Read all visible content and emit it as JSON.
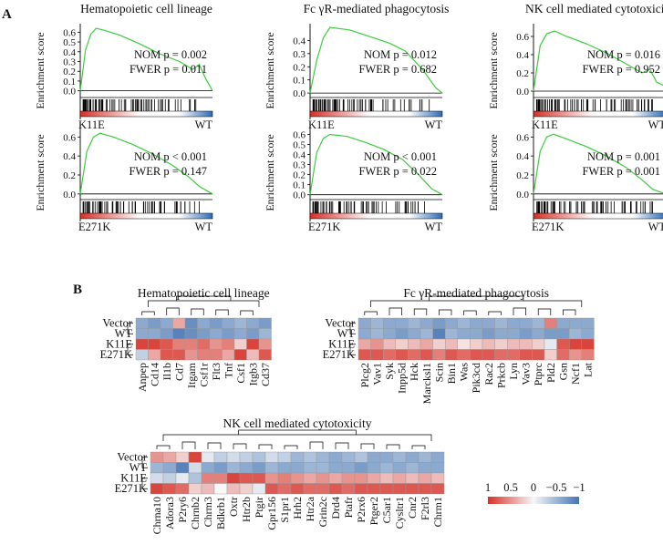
{
  "figure": {
    "panel_a_label": "A",
    "panel_b_label": "B",
    "enrichment_ylabel": "Enrichment score",
    "colorbar_ticks": [
      "1",
      "0.5",
      "0",
      "−0.5",
      "−1"
    ],
    "accent_red": "#c0282d"
  },
  "gsea": [
    {
      "title": "Hematopoietic cell lineage",
      "left": "K11E",
      "right": "WT",
      "nom": "NOM p = 0.002",
      "fwer": "FWER p = 0.011",
      "fwer_sig": true,
      "yticks": [
        "0.6",
        "0.5",
        "0.4",
        "0.3",
        "0.2",
        "0.1",
        "0.0"
      ],
      "ymax": 0.65,
      "ymin": -0.05,
      "curve": [
        [
          0,
          0
        ],
        [
          0.04,
          0.42
        ],
        [
          0.08,
          0.58
        ],
        [
          0.12,
          0.64
        ],
        [
          0.18,
          0.62
        ],
        [
          0.3,
          0.57
        ],
        [
          0.45,
          0.48
        ],
        [
          0.6,
          0.38
        ],
        [
          0.75,
          0.3
        ],
        [
          0.85,
          0.22
        ],
        [
          0.9,
          0.27
        ],
        [
          0.95,
          0.12
        ],
        [
          1,
          0
        ]
      ],
      "bar": "red-blue"
    },
    {
      "title": "Fc γR-mediated phagocytosis",
      "left": "K11E",
      "right": "WT",
      "nom": "NOM p = 0.012",
      "fwer": "FWER p = 0.682",
      "fwer_sig": false,
      "yticks": [
        "0.4",
        "0.3",
        "0.2",
        "0.1",
        "0.0"
      ],
      "ymax": 0.5,
      "ymin": -0.02,
      "curve": [
        [
          0,
          0
        ],
        [
          0.05,
          0.25
        ],
        [
          0.1,
          0.42
        ],
        [
          0.15,
          0.5
        ],
        [
          0.3,
          0.48
        ],
        [
          0.45,
          0.43
        ],
        [
          0.6,
          0.38
        ],
        [
          0.72,
          0.32
        ],
        [
          0.85,
          0.18
        ],
        [
          0.95,
          0.04
        ],
        [
          1,
          0
        ]
      ],
      "bar": "red-blue"
    },
    {
      "title": "NK cell mediated cytotoxicity",
      "left": "K11E",
      "right": "WT",
      "nom": "NOM p = 0.016",
      "fwer": "FWER p = 0.952",
      "fwer_sig": false,
      "yticks": [
        "0.6",
        "0.4",
        "0.2",
        "0.0"
      ],
      "ymax": 0.7,
      "ymin": -0.05,
      "curve": [
        [
          0,
          0
        ],
        [
          0.05,
          0.5
        ],
        [
          0.1,
          0.63
        ],
        [
          0.16,
          0.66
        ],
        [
          0.25,
          0.6
        ],
        [
          0.4,
          0.52
        ],
        [
          0.55,
          0.42
        ],
        [
          0.7,
          0.3
        ],
        [
          0.82,
          0.2
        ],
        [
          0.88,
          0.24
        ],
        [
          0.93,
          0.1
        ],
        [
          1,
          0.05
        ]
      ],
      "bar": "red-blue"
    },
    {
      "title": "",
      "left": "E271K",
      "right": "WT",
      "nom": "NOM p < 0.001",
      "fwer": "FWER p = 0.147",
      "fwer_sig": false,
      "yticks": [
        "0.6",
        "0.4",
        "0.2",
        "0.0"
      ],
      "ymax": 0.68,
      "ymin": -0.04,
      "curve": [
        [
          0,
          0
        ],
        [
          0.05,
          0.45
        ],
        [
          0.1,
          0.6
        ],
        [
          0.15,
          0.64
        ],
        [
          0.25,
          0.6
        ],
        [
          0.4,
          0.52
        ],
        [
          0.55,
          0.42
        ],
        [
          0.7,
          0.3
        ],
        [
          0.82,
          0.18
        ],
        [
          0.9,
          0.08
        ],
        [
          1,
          0
        ]
      ],
      "bar": "red-blue"
    },
    {
      "title": "",
      "left": "E271K",
      "right": "WT",
      "nom": "NOM p < 0.001",
      "fwer": "FWER p = 0.022",
      "fwer_sig": true,
      "yticks": [
        "0.6",
        "0.5",
        "0.4",
        "0.3",
        "0.2",
        "0.1",
        "0.0"
      ],
      "ymax": 0.65,
      "ymin": -0.03,
      "curve": [
        [
          0,
          0
        ],
        [
          0.05,
          0.42
        ],
        [
          0.1,
          0.56
        ],
        [
          0.15,
          0.6
        ],
        [
          0.28,
          0.58
        ],
        [
          0.42,
          0.52
        ],
        [
          0.56,
          0.45
        ],
        [
          0.7,
          0.35
        ],
        [
          0.82,
          0.2
        ],
        [
          0.92,
          0.06
        ],
        [
          1,
          0
        ]
      ],
      "bar": "red-blue"
    },
    {
      "title": "",
      "left": "E271K",
      "right": "WT",
      "nom": "NOM p = 0.001",
      "fwer": "FWER p = 0.001",
      "fwer_sig": true,
      "yticks": [
        "0.6",
        "0.4",
        "0.2",
        "0.0"
      ],
      "ymax": 0.68,
      "ymin": -0.04,
      "curve": [
        [
          0,
          0
        ],
        [
          0.05,
          0.45
        ],
        [
          0.1,
          0.6
        ],
        [
          0.15,
          0.63
        ],
        [
          0.25,
          0.58
        ],
        [
          0.4,
          0.5
        ],
        [
          0.55,
          0.4
        ],
        [
          0.7,
          0.28
        ],
        [
          0.82,
          0.15
        ],
        [
          0.9,
          0.05
        ],
        [
          1,
          0
        ]
      ],
      "bar": "red-blue"
    }
  ],
  "heatmaps": [
    {
      "title": "Hematopoietic cell lineage",
      "rows": [
        "Vector",
        "WT",
        "K11E",
        "E271K"
      ],
      "cols": [
        "Anpep",
        "Cd14",
        "Il1b",
        "Cd7",
        "Itgam",
        "Csf1r",
        "Flt3",
        "Tnf",
        "Csf1",
        "Itgb3",
        "Cd37"
      ],
      "values": [
        [
          0.6,
          0.7,
          0.6,
          -0.4,
          0.8,
          0.6,
          0.7,
          0.6,
          0.5,
          0.6,
          0.7
        ],
        [
          0.6,
          0.6,
          0.7,
          0.9,
          0.8,
          0.7,
          0.6,
          0.7,
          0.6,
          0.7,
          0.5
        ],
        [
          -0.9,
          -0.9,
          -0.8,
          -0.6,
          -0.6,
          -0.7,
          -0.5,
          -0.6,
          -0.2,
          -0.9,
          -0.5
        ],
        [
          0.3,
          -0.4,
          -0.8,
          -0.8,
          -0.5,
          -0.6,
          -0.6,
          -0.4,
          -0.9,
          -0.3,
          -0.8
        ]
      ]
    },
    {
      "title": "Fc γR-mediated phagocytosis",
      "rows": [
        "Vector",
        "WT",
        "K11E",
        "E271K"
      ],
      "cols": [
        "Plcg2",
        "Vav1",
        "Syk",
        "Inpp5d",
        "Hck",
        "Marcksl1",
        "Scin",
        "Bin1",
        "Was",
        "Pik3cd",
        "Rac2",
        "Prkcb",
        "Lyn",
        "Vav3",
        "Ptprc",
        "Pld2",
        "Gsn",
        "Ncf1",
        "Lat"
      ],
      "values": [
        [
          0.6,
          0.5,
          0.6,
          0.6,
          0.5,
          0.6,
          0.7,
          0.6,
          0.5,
          0.6,
          0.6,
          0.5,
          0.6,
          0.6,
          0.5,
          -0.6,
          0.6,
          0.6,
          0.6
        ],
        [
          0.6,
          0.5,
          0.6,
          0.7,
          0.6,
          0.5,
          0.9,
          0.5,
          0.6,
          0.6,
          0.7,
          0.6,
          0.6,
          0.7,
          0.6,
          0.7,
          0.7,
          0.5,
          0.6
        ],
        [
          -0.4,
          -0.5,
          -0.3,
          -0.2,
          -0.3,
          -0.4,
          -0.2,
          -0.3,
          -0.1,
          -0.2,
          -0.3,
          -0.2,
          -0.3,
          -0.3,
          -0.2,
          0.1,
          -0.8,
          -0.9,
          -0.9
        ],
        [
          -0.8,
          -0.8,
          -0.7,
          -0.8,
          -0.7,
          -0.8,
          -0.6,
          -0.8,
          -0.7,
          -0.8,
          -0.8,
          -0.7,
          -0.7,
          -0.8,
          -0.8,
          -0.2,
          -0.7,
          -0.5,
          -0.6
        ]
      ]
    },
    {
      "title": "NK cell mediated cytotoxicity",
      "rows": [
        "Vector",
        "WT",
        "K11E",
        "E271K"
      ],
      "cols": [
        "Chrna10",
        "Adora3",
        "P2ry6",
        "Chrnb2",
        "Chrm3",
        "Bdkrb1",
        "Oxtr",
        "Htr2b",
        "Ptgir",
        "Gpr156",
        "S1pr1",
        "Hrh2",
        "Htr2a",
        "Grin2c",
        "Drd4",
        "Ptafr",
        "P2rx6",
        "Ptger2",
        "C5ar1",
        "Cysltr1",
        "Cnr2",
        "F2rl3",
        "Chrm1"
      ],
      "values": [
        [
          -0.5,
          -0.4,
          -0.2,
          -0.9,
          0.1,
          0.3,
          0.2,
          0.3,
          0.4,
          0.2,
          0.3,
          0.5,
          0.4,
          0.5,
          0.6,
          0.5,
          0.4,
          0.6,
          0.6,
          0.5,
          0.6,
          0.5,
          0.6
        ],
        [
          0.5,
          0.6,
          0.9,
          0.2,
          0.6,
          0.7,
          0.5,
          0.6,
          0.7,
          0.5,
          0.6,
          0.6,
          0.5,
          0.5,
          0.6,
          0.6,
          0.7,
          0.6,
          0.5,
          0.6,
          0.5,
          0.6,
          0.6
        ],
        [
          0.2,
          0.3,
          0.1,
          0.4,
          -0.6,
          -0.6,
          -0.9,
          -0.8,
          -0.8,
          -0.5,
          -0.6,
          -0.5,
          -0.4,
          -0.5,
          -0.4,
          -0.5,
          -0.5,
          -0.4,
          -0.3,
          -0.4,
          -0.3,
          -0.4,
          -0.3
        ],
        [
          -0.9,
          -0.8,
          -0.7,
          -0.2,
          -0.3,
          0.0,
          -0.3,
          -0.2,
          0.1,
          -0.8,
          -0.7,
          -0.8,
          -0.7,
          -0.7,
          -0.8,
          -0.7,
          -0.8,
          -0.8,
          -0.8,
          -0.8,
          -0.8,
          -0.8,
          -0.8
        ]
      ]
    }
  ]
}
